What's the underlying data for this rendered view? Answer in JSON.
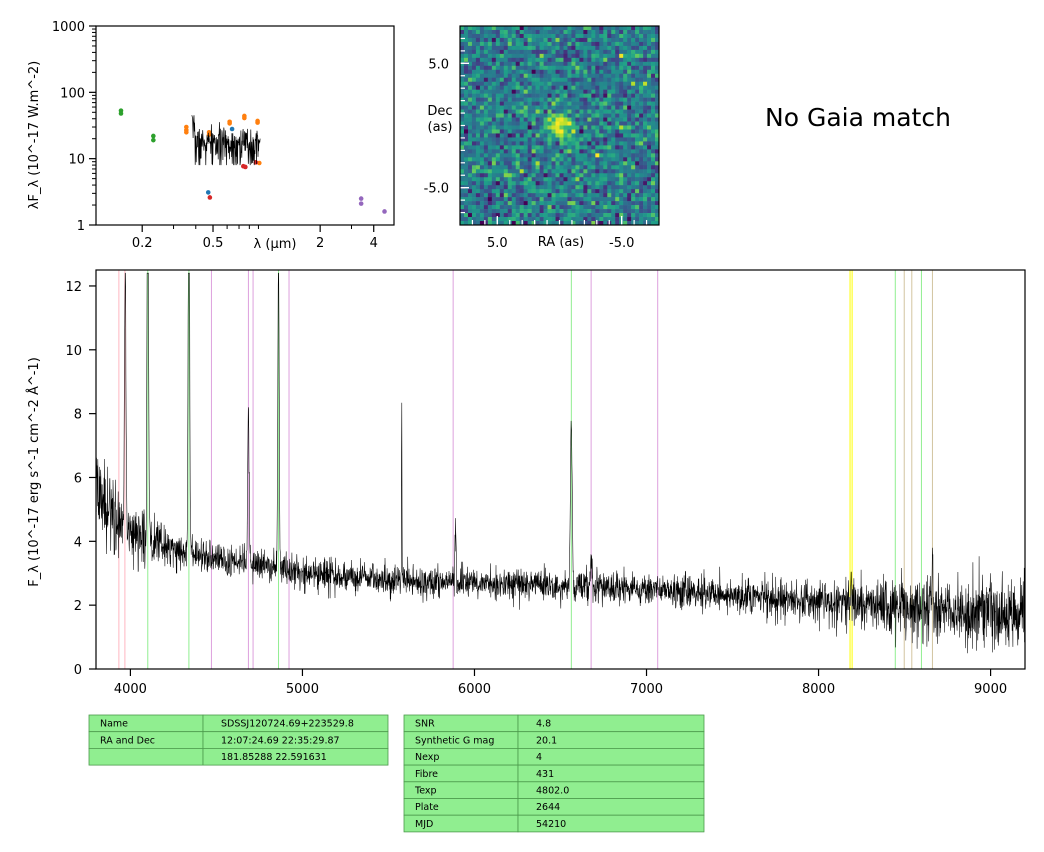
{
  "gaia_text": "No Gaia match",
  "chart_data": [
    {
      "type": "scatter",
      "panel": "sed",
      "xlabel": "λ (μm)",
      "ylabel": "λF_λ (10^-17 W.m^-2)",
      "xscale": "log",
      "yscale": "log",
      "xlim": [
        0.11,
        5.2
      ],
      "ylim": [
        1,
        1000
      ],
      "x_ticks": [
        {
          "v": 0.2,
          "label": "0.2"
        },
        {
          "v": 0.5,
          "label": "0.5"
        },
        {
          "v": 2,
          "label": "2"
        },
        {
          "v": 4,
          "label": "4"
        }
      ],
      "y_ticks": [
        {
          "v": 1,
          "label": "1"
        },
        {
          "v": 10,
          "label": "10"
        },
        {
          "v": 100,
          "label": "100"
        },
        {
          "v": 1000,
          "label": "1000"
        }
      ],
      "groups": [
        {
          "color": "#2ca02c",
          "points": [
            [
              0.152,
              53
            ],
            [
              0.152,
              48
            ],
            [
              0.231,
              22
            ],
            [
              0.231,
              19
            ]
          ]
        },
        {
          "color": "#ff7f0e",
          "points": [
            [
              0.354,
              30
            ],
            [
              0.354,
              27
            ],
            [
              0.354,
              25
            ],
            [
              0.475,
              25
            ],
            [
              0.475,
              23
            ],
            [
              0.62,
              36
            ],
            [
              0.62,
              34
            ],
            [
              0.75,
              44
            ],
            [
              0.75,
              41
            ],
            [
              0.89,
              37
            ],
            [
              0.89,
              35
            ],
            [
              0.91,
              8.6
            ]
          ]
        },
        {
          "color": "#1f77b4",
          "points": [
            [
              0.47,
              3.1
            ],
            [
              0.64,
              28
            ]
          ]
        },
        {
          "color": "#d62728",
          "points": [
            [
              0.48,
              2.6
            ],
            [
              0.74,
              7.7
            ],
            [
              0.76,
              7.5
            ],
            [
              0.87,
              8.8
            ]
          ]
        },
        {
          "color": "#9467bd",
          "points": [
            [
              3.4,
              2.5
            ],
            [
              3.4,
              2.1
            ],
            [
              4.6,
              1.6
            ]
          ]
        }
      ],
      "spectrum_overlay": {
        "x_range": [
          0.38,
          0.92
        ],
        "level": 17,
        "peak": 45
      }
    },
    {
      "type": "heatmap",
      "panel": "image",
      "xlabel": "RA (as)",
      "ylabel": "Dec\n(as)",
      "xlim": [
        8.0,
        -8.0
      ],
      "ylim": [
        -8.0,
        8.0
      ],
      "x_ticks": [
        {
          "v": 5.0,
          "label": "5.0"
        },
        {
          "v": -5.0,
          "label": "-5.0"
        }
      ],
      "y_ticks": [
        {
          "v": 5.0,
          "label": "5.0"
        },
        {
          "v": -5.0,
          "label": "-5.0"
        }
      ],
      "grid": [
        50,
        50
      ],
      "colormap": "viridis",
      "source_peak": [
        0.0,
        0.0
      ]
    },
    {
      "type": "line",
      "panel": "spectrum",
      "xlabel": "",
      "ylabel": "F_λ (10^-17 erg s^-1 cm^-2 Å^-1)",
      "xlim": [
        3800,
        9200
      ],
      "ylim": [
        0,
        12.5
      ],
      "x_ticks": [
        {
          "v": 4000,
          "label": "4000"
        },
        {
          "v": 5000,
          "label": "5000"
        },
        {
          "v": 6000,
          "label": "6000"
        },
        {
          "v": 7000,
          "label": "7000"
        },
        {
          "v": 8000,
          "label": "8000"
        },
        {
          "v": 9000,
          "label": "9000"
        }
      ],
      "y_ticks": [
        {
          "v": 0,
          "label": "0"
        },
        {
          "v": 2,
          "label": "2"
        },
        {
          "v": 4,
          "label": "4"
        },
        {
          "v": 6,
          "label": "6"
        },
        {
          "v": 8,
          "label": "8"
        },
        {
          "v": 10,
          "label": "10"
        },
        {
          "v": 12,
          "label": "12"
        }
      ],
      "continuum": [
        [
          3800,
          5.5
        ],
        [
          4000,
          4.3
        ],
        [
          4300,
          3.7
        ],
        [
          4700,
          3.3
        ],
        [
          5000,
          3.0
        ],
        [
          5500,
          2.8
        ],
        [
          6000,
          2.7
        ],
        [
          6500,
          2.6
        ],
        [
          7000,
          2.5
        ],
        [
          7500,
          2.3
        ],
        [
          8000,
          2.1
        ],
        [
          8500,
          1.9
        ],
        [
          9200,
          1.7
        ]
      ],
      "lines": [
        {
          "x": 3970,
          "peak": 9.0,
          "w": 4
        },
        {
          "x": 4101,
          "peak": 14,
          "w": 4
        },
        {
          "x": 4340,
          "peak": 14,
          "w": 4
        },
        {
          "x": 4686,
          "peak": 5.0,
          "w": 4
        },
        {
          "x": 4861,
          "peak": 9.5,
          "w": 4
        },
        {
          "x": 5577,
          "peak": 6.0,
          "w": 1.2
        },
        {
          "x": 5890,
          "peak": 2.0,
          "w": 3
        },
        {
          "x": 6563,
          "peak": 5.3,
          "w": 5
        },
        {
          "x": 6678,
          "peak": 1.0,
          "w": 4
        },
        {
          "x": 8190,
          "peak": 1.0,
          "w": 2
        },
        {
          "x": 8662,
          "peak": 1.8,
          "w": 2
        }
      ],
      "vlines": [
        {
          "x": 3933,
          "color": "#ffb6c1"
        },
        {
          "x": 3968,
          "color": "#ffb6c1"
        },
        {
          "x": 4101,
          "color": "#90ee90"
        },
        {
          "x": 4340,
          "color": "#90ee90"
        },
        {
          "x": 4471,
          "color": "#dda0dd"
        },
        {
          "x": 4686,
          "color": "#dda0dd"
        },
        {
          "x": 4713,
          "color": "#dda0dd"
        },
        {
          "x": 4861,
          "color": "#90ee90"
        },
        {
          "x": 4922,
          "color": "#dda0dd"
        },
        {
          "x": 5876,
          "color": "#dda0dd"
        },
        {
          "x": 6563,
          "color": "#90ee90"
        },
        {
          "x": 6678,
          "color": "#dda0dd"
        },
        {
          "x": 7065,
          "color": "#dda0dd"
        },
        {
          "x": 8183,
          "color": "#ffff00"
        },
        {
          "x": 8195,
          "color": "#ffff00"
        },
        {
          "x": 8446,
          "color": "#90ee90"
        },
        {
          "x": 8498,
          "color": "#d2c4a0"
        },
        {
          "x": 8542,
          "color": "#d2c4a0"
        },
        {
          "x": 8598,
          "color": "#90ee90"
        },
        {
          "x": 8662,
          "color": "#d2c4a0"
        }
      ]
    }
  ],
  "table_left": {
    "rows": [
      [
        "Name",
        "SDSSJ120724.69+223529.8"
      ],
      [
        "RA and Dec",
        "12:07:24.69    22:35:29.87"
      ],
      [
        "",
        "181.85288    22.591631"
      ]
    ]
  },
  "table_right": {
    "rows": [
      [
        "SNR",
        "4.8"
      ],
      [
        "Synthetic G mag",
        "20.1"
      ],
      [
        "Nexp",
        "4"
      ],
      [
        "Fibre",
        "431"
      ],
      [
        "Texp",
        "4802.0"
      ],
      [
        "Plate",
        "2644"
      ],
      [
        "MJD",
        "54210"
      ]
    ]
  },
  "colors": {
    "table_fill": "#90ee90",
    "table_edge": "#4c9a4c",
    "spectrum": "#000000"
  }
}
